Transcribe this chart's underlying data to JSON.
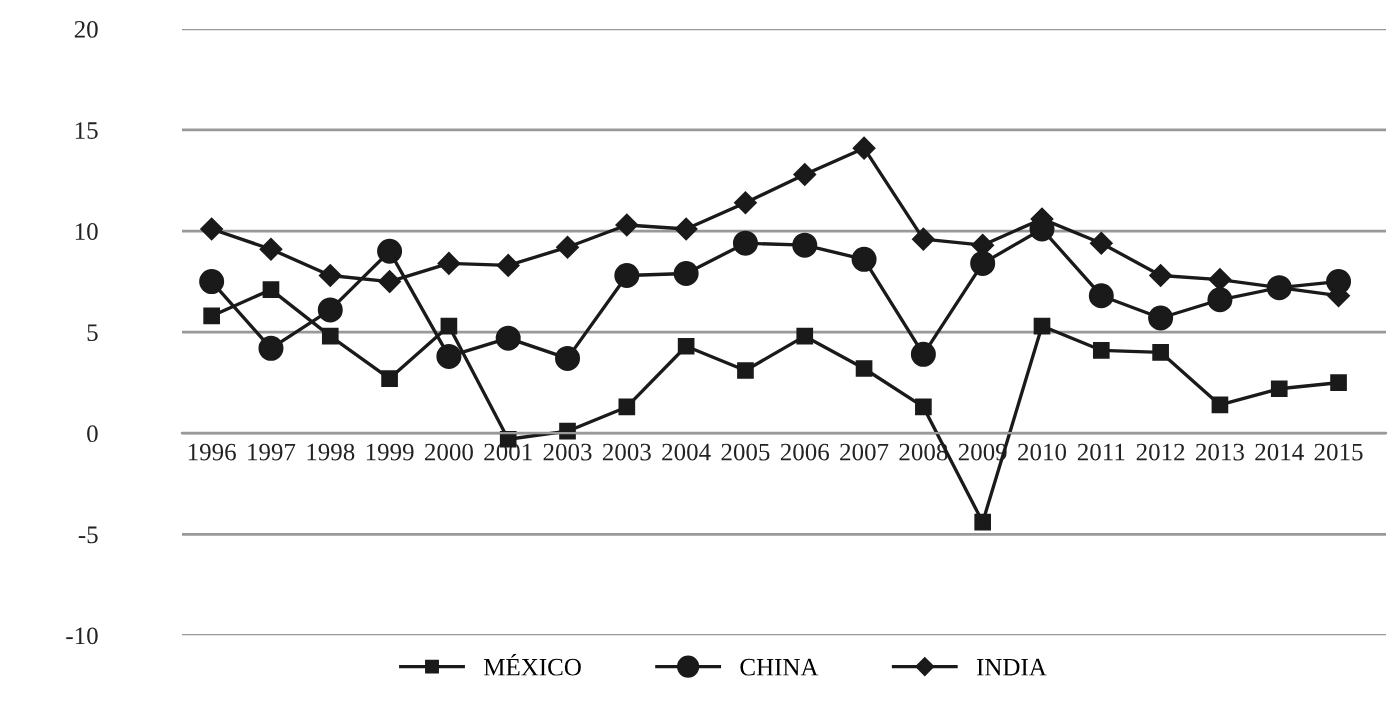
{
  "chart_data": {
    "type": "line",
    "categories": [
      "1996",
      "1997",
      "1998",
      "1999",
      "2000",
      "2001",
      "2003",
      "2003",
      "2004",
      "2005",
      "2006",
      "2007",
      "2008",
      "2009",
      "2010",
      "2011",
      "2012",
      "2013",
      "2014",
      "2015"
    ],
    "series": [
      {
        "name": "MÉXICO",
        "color": "#1a1a1a",
        "marker": "square",
        "values": [
          5.8,
          7.1,
          4.8,
          2.7,
          5.3,
          -0.3,
          0.1,
          1.3,
          4.3,
          3.1,
          4.8,
          3.2,
          1.3,
          -4.4,
          5.3,
          4.1,
          4.0,
          1.4,
          2.2,
          2.5
        ]
      },
      {
        "name": "CHINA",
        "color": "#1a1a1a",
        "marker": "circle",
        "values": [
          7.5,
          4.2,
          6.1,
          9.0,
          3.8,
          4.7,
          3.7,
          7.8,
          7.9,
          9.4,
          9.3,
          8.6,
          3.9,
          8.4,
          10.1,
          6.8,
          5.7,
          6.6,
          7.2,
          7.5
        ]
      },
      {
        "name": "INDIA",
        "color": "#1a1a1a",
        "marker": "diamond",
        "values": [
          10.1,
          9.1,
          7.8,
          7.5,
          8.4,
          8.3,
          9.2,
          10.3,
          10.1,
          11.4,
          12.8,
          14.1,
          9.6,
          9.3,
          10.6,
          9.4,
          7.8,
          7.6,
          7.2,
          6.8
        ]
      }
    ],
    "ylim": [
      -10,
      20
    ],
    "yticks": [
      -10,
      -5,
      0,
      5,
      10,
      15,
      20
    ],
    "grid": "y",
    "legend": "bottom",
    "line_style": "solid"
  }
}
